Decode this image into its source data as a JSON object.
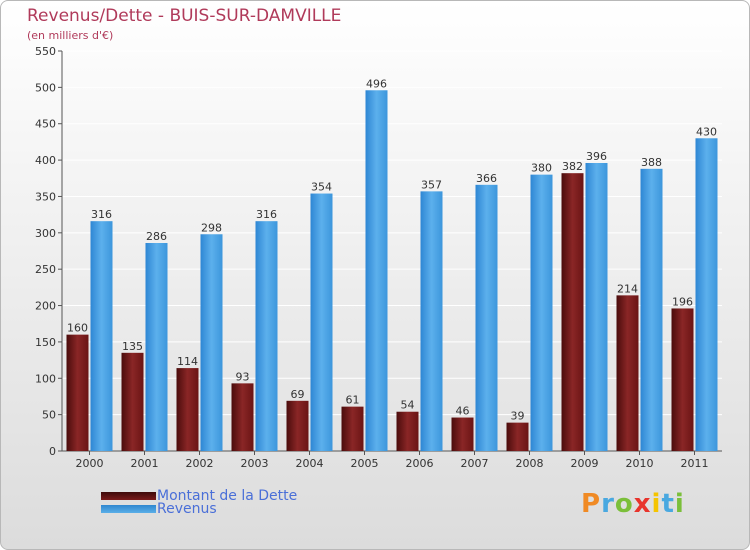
{
  "chart_data": {
    "type": "bar",
    "title": "Revenus/Dette - BUIS-SUR-DAMVILLE",
    "subtitle": "(en milliers d'€)",
    "categories": [
      "2000",
      "2001",
      "2002",
      "2003",
      "2004",
      "2005",
      "2006",
      "2007",
      "2008",
      "2009",
      "2010",
      "2011"
    ],
    "series": [
      {
        "name": "Montant de la Dette",
        "color": "#7a1a1a",
        "values": [
          160,
          135,
          114,
          93,
          69,
          61,
          54,
          46,
          39,
          382,
          214,
          196
        ]
      },
      {
        "name": "Revenus",
        "color": "#4a9fe0",
        "values": [
          316,
          286,
          298,
          316,
          354,
          496,
          357,
          366,
          380,
          396,
          388,
          430
        ]
      }
    ],
    "ylim": [
      0,
      550
    ],
    "yticks": [
      0,
      50,
      100,
      150,
      200,
      250,
      300,
      350,
      400,
      450,
      500,
      550
    ],
    "grid": true,
    "legend_position": "bottom-left"
  },
  "logo": {
    "letters": [
      "P",
      "r",
      "o",
      "x",
      "i",
      "t",
      "i"
    ],
    "colors": [
      "#f08a24",
      "#49a8e0",
      "#7bbf3a",
      "#e8342c",
      "#f5c400",
      "#49a8e0",
      "#7bbf3a"
    ]
  }
}
